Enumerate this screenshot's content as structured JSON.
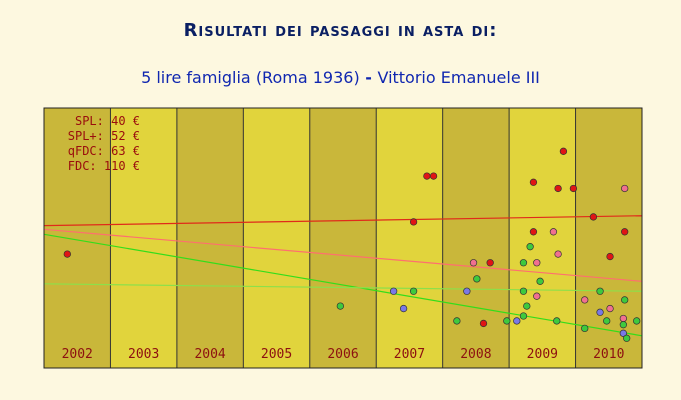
{
  "header": {
    "title": "Risultati dei passaggi in asta di:",
    "subtitle_coin": "5 lire famiglia (Roma 1936)",
    "subtitle_sep": " - ",
    "subtitle_king": "Vittorio Emanuele III"
  },
  "chart_data": {
    "type": "scatter",
    "title": "",
    "x_categories": [
      "2002",
      "2003",
      "2004",
      "2005",
      "2006",
      "2007",
      "2008",
      "2009",
      "2010"
    ],
    "x_range": [
      2002.0,
      2010.98
    ],
    "y_range": [
      0,
      210
    ],
    "grades": [
      {
        "label": "SPL: 40 €",
        "color": "#3ec93e"
      },
      {
        "label": "SPL+: 52 €",
        "color": "#7a78e6"
      },
      {
        "label": "qFDC: 63 €",
        "color": "#f07090"
      },
      {
        "label": "FDC: 110 €",
        "color": "#e01515"
      }
    ],
    "trend_lines": [
      {
        "grade": "FDC",
        "color": "#e02a1a",
        "start": [
          2002.0,
          115
        ],
        "end": [
          2010.98,
          123
        ]
      },
      {
        "grade": "qFDC",
        "color": "#ff6f6f",
        "start": [
          2002.0,
          112
        ],
        "end": [
          2010.98,
          70
        ]
      },
      {
        "grade": "SPL",
        "color": "#33dd1a",
        "start": [
          2002.0,
          108
        ],
        "end": [
          2010.98,
          26
        ]
      },
      {
        "grade": "SPL+",
        "color": "#8ce04a",
        "start": [
          2002.0,
          68
        ],
        "end": [
          2010.98,
          62
        ]
      }
    ],
    "points": [
      {
        "x": 2002.35,
        "y": 92,
        "grade": "FDC"
      },
      {
        "x": 2006.45,
        "y": 50,
        "grade": "SPL"
      },
      {
        "x": 2007.25,
        "y": 62,
        "grade": "SPL+"
      },
      {
        "x": 2007.4,
        "y": 48,
        "grade": "SPL+"
      },
      {
        "x": 2007.55,
        "y": 62,
        "grade": "SPL"
      },
      {
        "x": 2007.55,
        "y": 118,
        "grade": "FDC"
      },
      {
        "x": 2007.75,
        "y": 155,
        "grade": "FDC"
      },
      {
        "x": 2007.85,
        "y": 155,
        "grade": "FDC"
      },
      {
        "x": 2008.2,
        "y": 38,
        "grade": "SPL"
      },
      {
        "x": 2008.35,
        "y": 62,
        "grade": "SPL+"
      },
      {
        "x": 2008.45,
        "y": 85,
        "grade": "qFDC"
      },
      {
        "x": 2008.5,
        "y": 72,
        "grade": "SPL"
      },
      {
        "x": 2008.6,
        "y": 36,
        "grade": "FDC"
      },
      {
        "x": 2008.7,
        "y": 85,
        "grade": "FDC"
      },
      {
        "x": 2008.95,
        "y": 38,
        "grade": "SPL"
      },
      {
        "x": 2009.35,
        "y": 150,
        "grade": "FDC"
      },
      {
        "x": 2009.1,
        "y": 38,
        "grade": "SPL+"
      },
      {
        "x": 2009.2,
        "y": 42,
        "grade": "SPL"
      },
      {
        "x": 2009.2,
        "y": 62,
        "grade": "SPL"
      },
      {
        "x": 2009.2,
        "y": 85,
        "grade": "SPL"
      },
      {
        "x": 2009.25,
        "y": 50,
        "grade": "SPL"
      },
      {
        "x": 2009.3,
        "y": 98,
        "grade": "SPL"
      },
      {
        "x": 2009.35,
        "y": 110,
        "grade": "FDC"
      },
      {
        "x": 2009.4,
        "y": 58,
        "grade": "qFDC"
      },
      {
        "x": 2009.4,
        "y": 85,
        "grade": "qFDC"
      },
      {
        "x": 2009.45,
        "y": 70,
        "grade": "SPL"
      },
      {
        "x": 2009.65,
        "y": 110,
        "grade": "qFDC"
      },
      {
        "x": 2009.7,
        "y": 38,
        "grade": "SPL"
      },
      {
        "x": 2009.72,
        "y": 92,
        "grade": "qFDC"
      },
      {
        "x": 2009.72,
        "y": 145,
        "grade": "FDC"
      },
      {
        "x": 2009.8,
        "y": 175,
        "grade": "FDC"
      },
      {
        "x": 2009.95,
        "y": 145,
        "grade": "FDC"
      },
      {
        "x": 2010.12,
        "y": 55,
        "grade": "qFDC"
      },
      {
        "x": 2010.12,
        "y": 32,
        "grade": "SPL"
      },
      {
        "x": 2010.25,
        "y": 122,
        "grade": "FDC"
      },
      {
        "x": 2010.35,
        "y": 45,
        "grade": "SPL+"
      },
      {
        "x": 2010.35,
        "y": 62,
        "grade": "SPL"
      },
      {
        "x": 2010.45,
        "y": 38,
        "grade": "SPL"
      },
      {
        "x": 2010.5,
        "y": 90,
        "grade": "FDC"
      },
      {
        "x": 2010.5,
        "y": 48,
        "grade": "qFDC"
      },
      {
        "x": 2010.7,
        "y": 40,
        "grade": "qFDC"
      },
      {
        "x": 2010.7,
        "y": 35,
        "grade": "SPL"
      },
      {
        "x": 2010.7,
        "y": 28,
        "grade": "SPL+"
      },
      {
        "x": 2010.72,
        "y": 55,
        "grade": "SPL"
      },
      {
        "x": 2010.75,
        "y": 24,
        "grade": "SPL"
      },
      {
        "x": 2010.72,
        "y": 110,
        "grade": "FDC"
      },
      {
        "x": 2010.72,
        "y": 145,
        "grade": "qFDC"
      },
      {
        "x": 2010.9,
        "y": 38,
        "grade": "SPL"
      }
    ],
    "colors": {
      "band_dark": "#c9b73a",
      "band_light": "#e1d43c",
      "plot_border": "#222222"
    }
  }
}
